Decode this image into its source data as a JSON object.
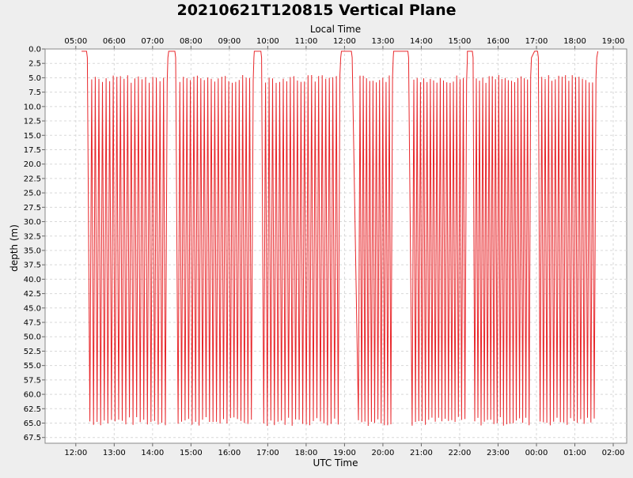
{
  "chart_data": {
    "type": "line",
    "title": "20210621T120815 Vertical Plane",
    "xlabel_bottom": "UTC Time",
    "xlabel_top": "Local Time",
    "ylabel": "depth (m)",
    "ylim": [
      0.0,
      68.5
    ],
    "y_inverted": true,
    "grid": true,
    "x_range_hours": [
      11.2,
      26.35
    ],
    "bottom_ticks": [
      {
        "label": "12:00",
        "x": 12
      },
      {
        "label": "13:00",
        "x": 13
      },
      {
        "label": "14:00",
        "x": 14
      },
      {
        "label": "15:00",
        "x": 15
      },
      {
        "label": "16:00",
        "x": 16
      },
      {
        "label": "17:00",
        "x": 17
      },
      {
        "label": "18:00",
        "x": 18
      },
      {
        "label": "19:00",
        "x": 19
      },
      {
        "label": "20:00",
        "x": 20
      },
      {
        "label": "21:00",
        "x": 21
      },
      {
        "label": "22:00",
        "x": 22
      },
      {
        "label": "23:00",
        "x": 23
      },
      {
        "label": "00:00",
        "x": 24
      },
      {
        "label": "01:00",
        "x": 25
      },
      {
        "label": "02:00",
        "x": 26
      }
    ],
    "top_ticks": [
      {
        "label": "05:00",
        "x": 12
      },
      {
        "label": "06:00",
        "x": 13
      },
      {
        "label": "07:00",
        "x": 14
      },
      {
        "label": "08:00",
        "x": 15
      },
      {
        "label": "09:00",
        "x": 16
      },
      {
        "label": "10:00",
        "x": 17
      },
      {
        "label": "11:00",
        "x": 18
      },
      {
        "label": "12:00",
        "x": 19
      },
      {
        "label": "13:00",
        "x": 20
      },
      {
        "label": "14:00",
        "x": 21
      },
      {
        "label": "15:00",
        "x": 22
      },
      {
        "label": "16:00",
        "x": 23
      },
      {
        "label": "17:00",
        "x": 24
      },
      {
        "label": "18:00",
        "x": 25
      },
      {
        "label": "19:00",
        "x": 26
      }
    ],
    "y_ticks": [
      "0.0",
      "2.5",
      "5.0",
      "7.5",
      "10.0",
      "12.5",
      "15.0",
      "17.5",
      "20.0",
      "22.5",
      "25.0",
      "27.5",
      "30.0",
      "32.5",
      "35.0",
      "37.5",
      "40.0",
      "42.5",
      "45.0",
      "47.5",
      "50.0",
      "52.5",
      "55.0",
      "57.5",
      "60.0",
      "62.5",
      "65.0",
      "67.5"
    ],
    "series": [
      {
        "color": "#e8262a",
        "segments": [
          {
            "start": 12.32,
            "end": 14.38,
            "yos_count": 22
          },
          {
            "start": 14.62,
            "end": 16.62,
            "yos_count": 22
          },
          {
            "start": 16.85,
            "end": 18.88,
            "yos_count": 22
          },
          {
            "start": 19.32,
            "end": 20.25,
            "yos_count": 11
          },
          {
            "start": 20.72,
            "end": 22.18,
            "yos_count": 17
          },
          {
            "start": 22.35,
            "end": 23.85,
            "yos_count": 18
          },
          {
            "start": 24.05,
            "end": 25.55,
            "yos_count": 17
          }
        ],
        "surfacings": [
          {
            "start": 12.15,
            "end": 12.28
          },
          {
            "start": 14.42,
            "end": 14.58
          },
          {
            "start": 16.65,
            "end": 16.82
          },
          {
            "start": 18.92,
            "end": 19.18
          },
          {
            "start": 20.28,
            "end": 20.65
          },
          {
            "start": 22.2,
            "end": 22.33
          },
          {
            "start": 23.95,
            "end": 24.03
          },
          {
            "start": 25.6,
            "end": 25.6
          }
        ],
        "dive_depth_range": [
          4.5,
          65.5
        ]
      }
    ]
  }
}
